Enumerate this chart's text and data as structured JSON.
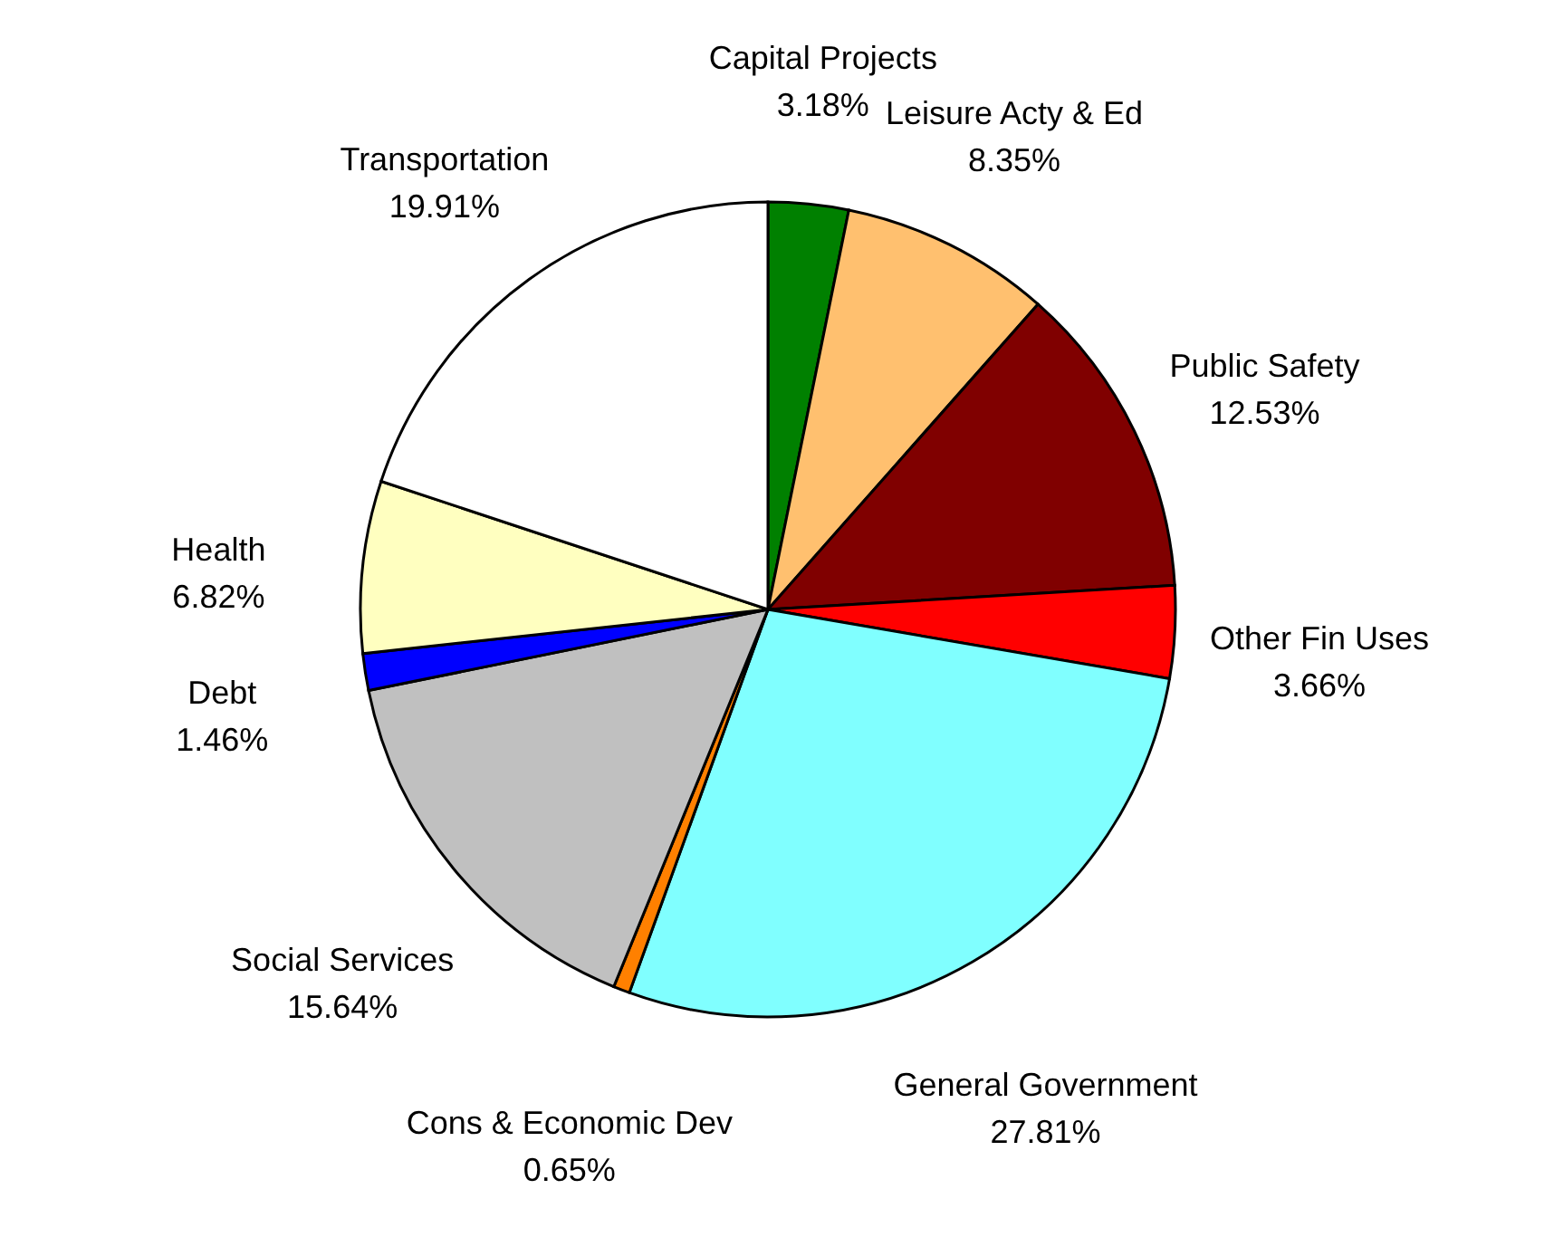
{
  "chart_data": {
    "type": "pie",
    "categories": [
      "Capital Projects",
      "Leisure Acty & Ed",
      "Public Safety",
      "Other Fin Uses",
      "General Government",
      "Cons & Economic Dev",
      "Social Services",
      "Debt",
      "Health",
      "Transportation"
    ],
    "values": [
      3.18,
      8.35,
      12.53,
      3.66,
      27.81,
      0.65,
      15.64,
      1.46,
      6.82,
      19.91
    ],
    "value_labels": [
      "3.18%",
      "8.35%",
      "12.53%",
      "3.66%",
      "27.81%",
      "0.65%",
      "15.64%",
      "1.46%",
      "6.82%",
      "19.91%"
    ],
    "colors": [
      "#008000",
      "#ffc06f",
      "#800000",
      "#ff0000",
      "#80ffff",
      "#ff8000",
      "#c0c0c0",
      "#0000ff",
      "#ffffc0",
      "#ffffff"
    ],
    "legend": false
  }
}
